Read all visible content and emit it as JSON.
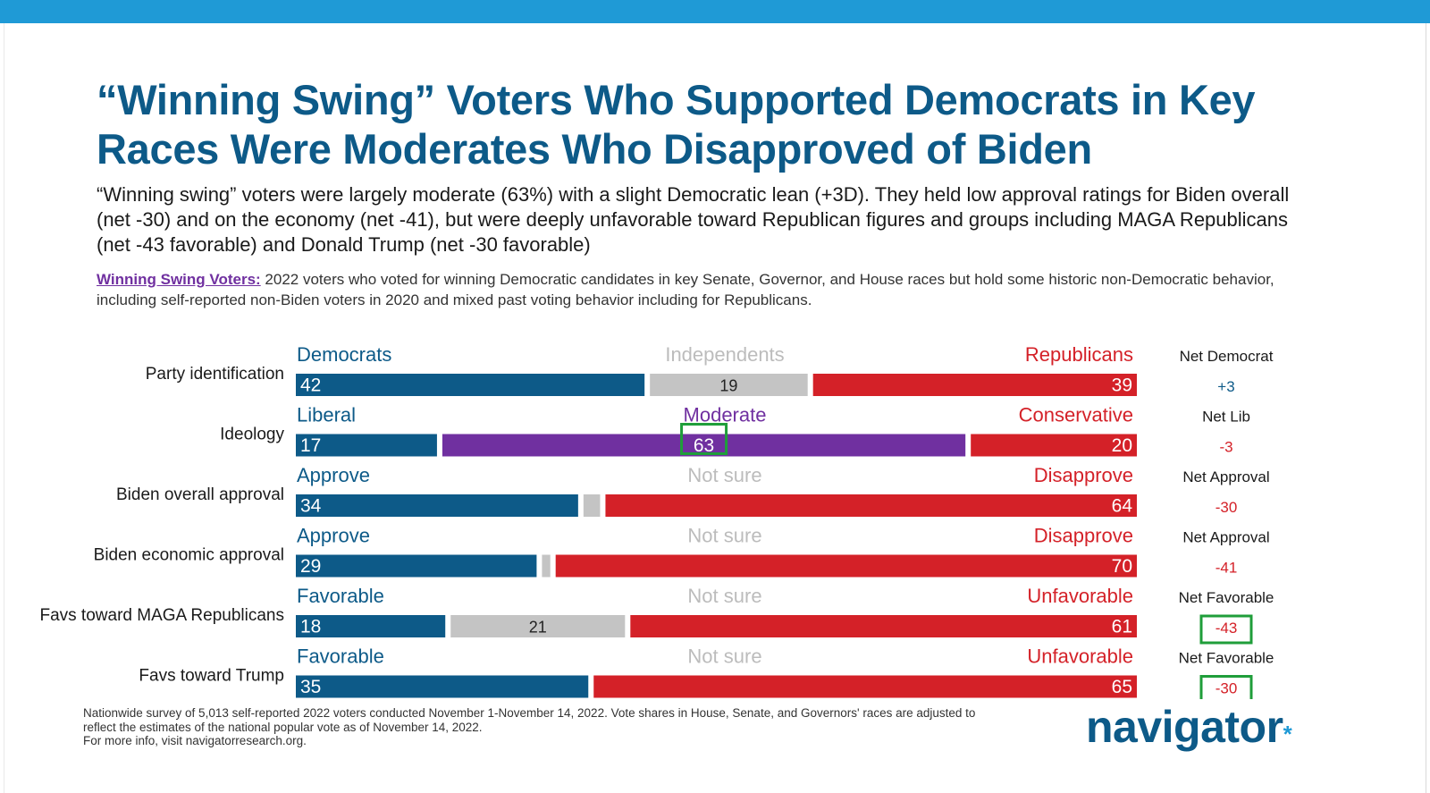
{
  "header": {
    "title": "“Winning Swing” Voters Who Supported Democrats in Key Races Were Moderates Who Disapproved of Biden",
    "subtitle": "“Winning swing” voters were largely moderate (63%) with a slight Democratic lean (+3D). They held low approval ratings for Biden overall (net -30) and on the economy (net -41), but were deeply unfavorable toward Republican figures and groups including MAGA Republicans (net -43 favorable) and Donald Trump (net -30 favorable)"
  },
  "definition": {
    "label": "Winning Swing Voters:",
    "text": " 2022 voters who voted for winning Democratic candidates in key Senate, Governor, and House races but hold some historic non-Democratic behavior, including self-reported non-Biden voters in 2020 and mixed past voting behavior including for Republicans."
  },
  "colors": {
    "left": "#0d5a88",
    "middle": "#c4c4c4",
    "middle_label": "#bcbcbc",
    "moderate": "#7030a0",
    "right": "#d42128",
    "net_positive": "#0d5a88",
    "net_negative": "#d42128",
    "highlight": "#1f9e3a"
  },
  "chart_data": {
    "type": "bar",
    "orientation": "horizontal-stacked",
    "unit": "percent",
    "rows": [
      {
        "label": "Party identification",
        "segments": [
          {
            "name": "Democrats",
            "value": 42,
            "label": "42",
            "style": "left"
          },
          {
            "name": "Independents",
            "value": 19,
            "label": "19",
            "style": "middle"
          },
          {
            "name": "Republicans",
            "value": 39,
            "label": "39",
            "style": "right"
          }
        ],
        "net_label": "Net Democrat",
        "net_value": "+3",
        "net_sign": "positive",
        "net_highlight": false
      },
      {
        "label": "Ideology",
        "segments": [
          {
            "name": "Liberal",
            "value": 17,
            "label": "17",
            "style": "left"
          },
          {
            "name": "Moderate",
            "value": 63,
            "label": "63",
            "style": "moderate",
            "highlight": true
          },
          {
            "name": "Conservative",
            "value": 20,
            "label": "20",
            "style": "right"
          }
        ],
        "net_label": "Net Lib",
        "net_value": "-3",
        "net_sign": "negative",
        "net_highlight": false
      },
      {
        "label": "Biden overall approval",
        "segments": [
          {
            "name": "Approve",
            "value": 34,
            "label": "34",
            "style": "left"
          },
          {
            "name": "Not sure",
            "value": 2,
            "label": "",
            "style": "middle"
          },
          {
            "name": "Disapprove",
            "value": 64,
            "label": "64",
            "style": "right"
          }
        ],
        "net_label": "Net Approval",
        "net_value": "-30",
        "net_sign": "negative",
        "net_highlight": false
      },
      {
        "label": "Biden economic approval",
        "segments": [
          {
            "name": "Approve",
            "value": 29,
            "label": "29",
            "style": "left"
          },
          {
            "name": "Not sure",
            "value": 1,
            "label": "",
            "style": "middle"
          },
          {
            "name": "Disapprove",
            "value": 70,
            "label": "70",
            "style": "right"
          }
        ],
        "net_label": "Net Approval",
        "net_value": "-41",
        "net_sign": "negative",
        "net_highlight": false
      },
      {
        "label": "Favs toward MAGA Republicans",
        "segments": [
          {
            "name": "Favorable",
            "value": 18,
            "label": "18",
            "style": "left"
          },
          {
            "name": "Not sure",
            "value": 21,
            "label": "21",
            "style": "middle"
          },
          {
            "name": "Unfavorable",
            "value": 61,
            "label": "61",
            "style": "right"
          }
        ],
        "net_label": "Net Favorable",
        "net_value": "-43",
        "net_sign": "negative",
        "net_highlight": true
      },
      {
        "label": "Favs toward Trump",
        "segments": [
          {
            "name": "Favorable",
            "value": 35,
            "label": "35",
            "style": "left"
          },
          {
            "name": "Not sure",
            "value": 0,
            "label": "",
            "style": "middle"
          },
          {
            "name": "Unfavorable",
            "value": 65,
            "label": "65",
            "style": "right"
          }
        ],
        "net_label": "Net Favorable",
        "net_value": "-30",
        "net_sign": "negative",
        "net_highlight": true
      }
    ]
  },
  "footnote": {
    "lines": [
      "Nationwide survey of 5,013 self-reported 2022 voters conducted November 1-November 14, 2022. Vote shares in House, Senate, and Governors' races are adjusted to",
      "reflect the estimates of the national popular vote as of November 14, 2022.",
      "For more info, visit navigatorresearch.org."
    ]
  },
  "logo": {
    "text": "navigator",
    "mark": "*"
  }
}
